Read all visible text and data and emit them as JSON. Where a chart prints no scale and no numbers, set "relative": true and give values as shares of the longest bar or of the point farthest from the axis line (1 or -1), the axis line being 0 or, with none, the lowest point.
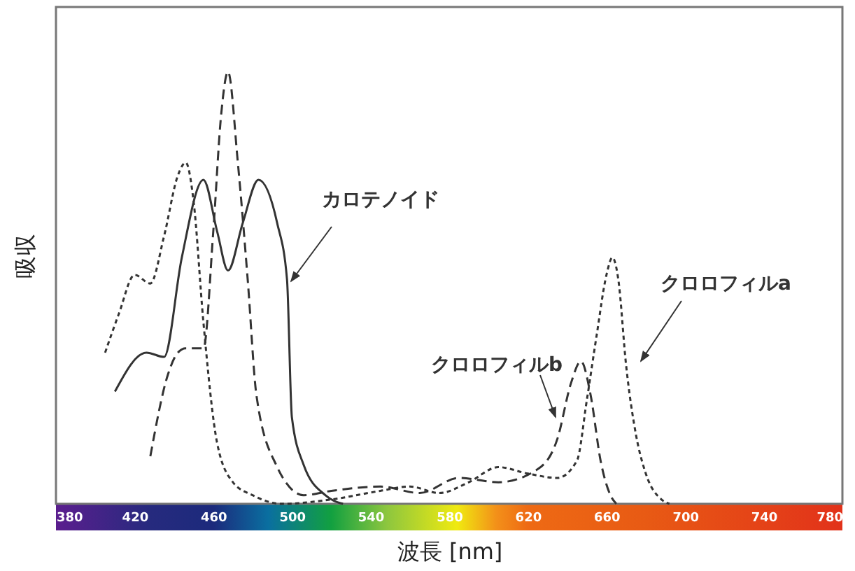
{
  "chart_data": {
    "type": "line",
    "relative": true,
    "xlabel": "波長 [nm]",
    "ylabel": "吸収",
    "xlim": [
      380,
      780
    ],
    "xticks": [
      380,
      420,
      460,
      500,
      540,
      580,
      620,
      660,
      700,
      740,
      780
    ],
    "grid": false,
    "series": [
      {
        "name": "カロテノイド",
        "color": "#333333",
        "line_style": "solid",
        "x": [
          410,
          426,
          435,
          444,
          455,
          462,
          467.5,
          475,
          483,
          492.5,
          497.5,
          500,
          506,
          517,
          526
        ],
        "values": [
          0.26,
          0.35,
          0.34,
          0.57,
          0.75,
          0.63,
          0.54,
          0.65,
          0.75,
          0.65,
          0.52,
          0.2,
          0.09,
          0.02,
          0
        ]
      },
      {
        "name": "クロロフィルb",
        "color": "#333333",
        "line_style": "dashed",
        "x": [
          428,
          437,
          442,
          446,
          455,
          460,
          464,
          467.5,
          472.5,
          477.5,
          482,
          492,
          506,
          520,
          545,
          565,
          585,
          605,
          625,
          635,
          642,
          647,
          652,
          657,
          662,
          665
        ],
        "values": [
          0.11,
          0.3,
          0.35,
          0.36,
          0.36,
          0.63,
          0.9,
          1,
          0.79,
          0.52,
          0.25,
          0.09,
          0.02,
          0.03,
          0.04,
          0.025,
          0.06,
          0.05,
          0.08,
          0.15,
          0.28,
          0.33,
          0.25,
          0.1,
          0.02,
          0
        ]
      },
      {
        "name": "クロロフィルa",
        "color": "#333333",
        "line_style": "dotted",
        "x": [
          405,
          412,
          420,
          428,
          435,
          442,
          446,
          450,
          455,
          462,
          470,
          480,
          495,
          520,
          545,
          560,
          575,
          590,
          605,
          620,
          635,
          645,
          650,
          655,
          660,
          663,
          666,
          670,
          675,
          680,
          688,
          692
        ],
        "values": [
          0.35,
          0.44,
          0.53,
          0.51,
          0.62,
          0.76,
          0.79,
          0.7,
          0.42,
          0.14,
          0.05,
          0.02,
          0,
          0.01,
          0.03,
          0.04,
          0.025,
          0.05,
          0.085,
          0.07,
          0.06,
          0.1,
          0.24,
          0.39,
          0.53,
          0.57,
          0.52,
          0.32,
          0.16,
          0.07,
          0.01,
          0
        ]
      }
    ]
  }
}
